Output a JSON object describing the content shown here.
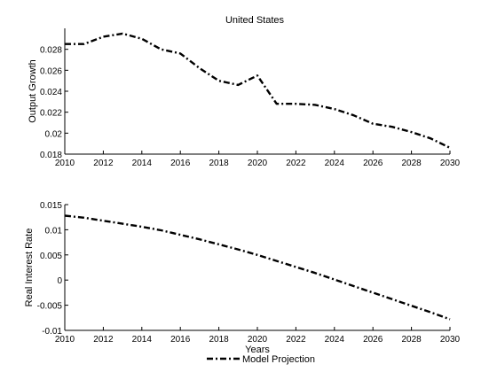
{
  "figure": {
    "title": "United States",
    "legend_label": "Model Projection"
  },
  "chart_data": [
    {
      "type": "line",
      "title": "United States",
      "xlabel": "",
      "ylabel": "Output Growth",
      "xlim": [
        2010,
        2030
      ],
      "ylim": [
        0.018,
        0.03
      ],
      "xticks": [
        "2010",
        "2012",
        "2014",
        "2016",
        "2018",
        "2020",
        "2022",
        "2024",
        "2026",
        "2028",
        "2030"
      ],
      "yticks": [
        "0.018",
        "0.02",
        "0.022",
        "0.024",
        "0.026",
        "0.028"
      ],
      "grid": false,
      "series": [
        {
          "name": "Model Projection",
          "style": "dash-dot",
          "color": "#000000",
          "x": [
            2010,
            2011,
            2012,
            2013,
            2014,
            2015,
            2016,
            2017,
            2018,
            2019,
            2020,
            2021,
            2022,
            2023,
            2024,
            2025,
            2026,
            2027,
            2028,
            2029,
            2030
          ],
          "values": [
            0.0285,
            0.0285,
            0.0292,
            0.0295,
            0.029,
            0.028,
            0.0276,
            0.0262,
            0.025,
            0.0246,
            0.0255,
            0.0228,
            0.0228,
            0.0227,
            0.0223,
            0.0217,
            0.0209,
            0.0206,
            0.0201,
            0.0195,
            0.0186
          ]
        }
      ]
    },
    {
      "type": "line",
      "title": "",
      "xlabel": "Years",
      "ylabel": "Real Interest Rate",
      "xlim": [
        2010,
        2030
      ],
      "ylim": [
        -0.01,
        0.015
      ],
      "xticks": [
        "2010",
        "2012",
        "2014",
        "2016",
        "2018",
        "2020",
        "2022",
        "2024",
        "2026",
        "2028",
        "2030"
      ],
      "yticks": [
        "-0.01",
        "-0.005",
        "0",
        "0.005",
        "0.01",
        "0.015"
      ],
      "grid": false,
      "series": [
        {
          "name": "Model Projection",
          "style": "dash-dot",
          "color": "#000000",
          "x": [
            2010,
            2011,
            2012,
            2013,
            2014,
            2015,
            2016,
            2017,
            2018,
            2019,
            2020,
            2021,
            2022,
            2023,
            2024,
            2025,
            2026,
            2027,
            2028,
            2029,
            2030
          ],
          "values": [
            0.0128,
            0.0124,
            0.0118,
            0.0112,
            0.0106,
            0.0099,
            0.009,
            0.0081,
            0.0071,
            0.0061,
            0.005,
            0.0038,
            0.0026,
            0.0014,
            0.0001,
            -0.0012,
            -0.0025,
            -0.0038,
            -0.0051,
            -0.0064,
            -0.0078
          ]
        }
      ]
    }
  ]
}
